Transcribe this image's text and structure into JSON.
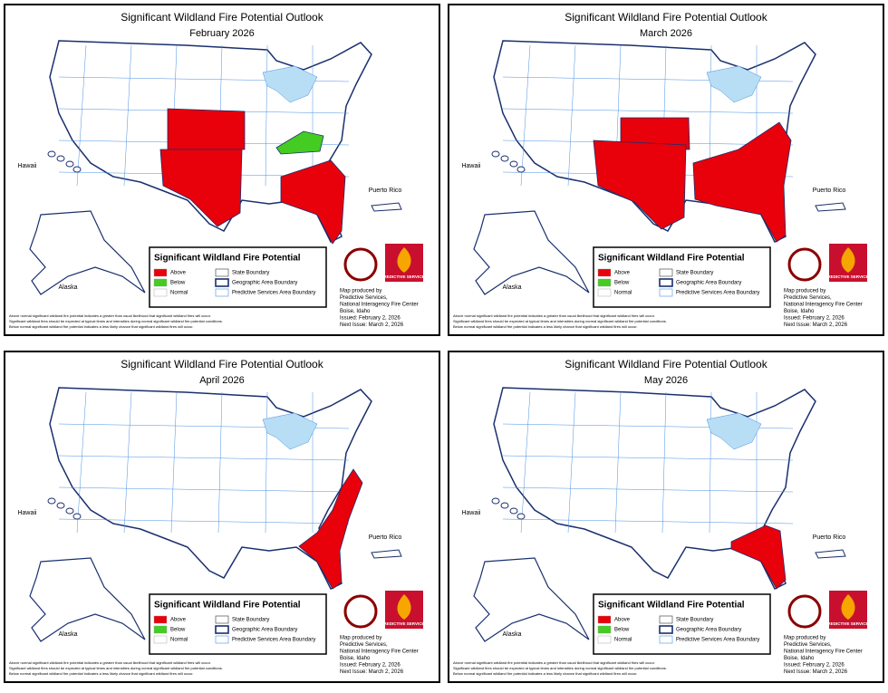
{
  "panels": [
    {
      "title": "Significant Wildland Fire Potential Outlook",
      "subtitle": "February 2026",
      "legend": {
        "title": "Significant Wildland Fire Potential",
        "items": [
          "Above",
          "Below",
          "Normal",
          "State Boundary",
          "Geographic Area Boundary",
          "Predictive Services Area Boundary"
        ]
      },
      "labels": [
        "Hawaii",
        "Alaska",
        "Puerto Rico"
      ],
      "logo": "PREDICTIVE SERVICES",
      "producer": [
        "Map produced by",
        "Predictive Services,",
        "National Interagency Fire Center",
        "Boise, Idaho",
        "Issued: February 2, 2026",
        "Next Issue: March 2, 2026"
      ],
      "notes": [
        "Above normal significant wildland fire potential indicates a greater than usual likelihood that significant wildland fires will occur.",
        "Significant wildland fires should be expected at typical times and intensities during normal significant wildland fire potential conditions.",
        "Below normal significant wildland fire potential indicates a less likely chance that significant wildland fires will occur."
      ]
    },
    {
      "title": "Significant Wildland Fire Potential Outlook",
      "subtitle": "March 2026",
      "legend": {
        "title": "Significant Wildland Fire Potential",
        "items": [
          "Above",
          "Below",
          "Normal",
          "State Boundary",
          "Geographic Area Boundary",
          "Predictive Services Area Boundary"
        ]
      },
      "labels": [
        "Hawaii",
        "Alaska",
        "Puerto Rico"
      ],
      "logo": "PREDICTIVE SERVICES",
      "producer": [
        "Map produced by",
        "Predictive Services,",
        "National Interagency Fire Center",
        "Boise, Idaho",
        "Issued: February 2, 2026",
        "Next Issue: March 2, 2026"
      ],
      "notes": [
        "Above normal significant wildland fire potential indicates a greater than usual likelihood that significant wildland fires will occur.",
        "Significant wildland fires should be expected at typical times and intensities during normal significant wildland fire potential conditions.",
        "Below normal significant wildland fire potential indicates a less likely chance that significant wildland fires will occur."
      ]
    },
    {
      "title": "Significant Wildland Fire Potential Outlook",
      "subtitle": "April 2026",
      "legend": {
        "title": "Significant Wildland Fire Potential",
        "items": [
          "Above",
          "Below",
          "Normal",
          "State Boundary",
          "Geographic Area Boundary",
          "Predictive Services Area Boundary"
        ]
      },
      "labels": [
        "Hawaii",
        "Alaska",
        "Puerto Rico"
      ],
      "logo": "PREDICTIVE SERVICES",
      "producer": [
        "Map produced by",
        "Predictive Services,",
        "National Interagency Fire Center",
        "Boise, Idaho",
        "Issued: February 2, 2026",
        "Next Issue: March 2, 2026"
      ],
      "notes": [
        "Above normal significant wildland fire potential indicates a greater than usual likelihood that significant wildland fires will occur.",
        "Significant wildland fires should be expected at typical times and intensities during normal significant wildland fire potential conditions.",
        "Below normal significant wildland fire potential indicates a less likely chance that significant wildland fires will occur."
      ]
    },
    {
      "title": "Significant Wildland Fire Potential Outlook",
      "subtitle": "May 2026",
      "legend": {
        "title": "Significant Wildland Fire Potential",
        "items": [
          "Above",
          "Below",
          "Normal",
          "State Boundary",
          "Geographic Area Boundary",
          "Predictive Services Area Boundary"
        ]
      },
      "labels": [
        "Hawaii",
        "Alaska",
        "Puerto Rico"
      ],
      "logo": "PREDICTIVE SERVICES",
      "producer": [
        "Map produced by",
        "Predictive Services,",
        "National Interagency Fire Center",
        "Boise, Idaho",
        "Issued: February 2, 2026",
        "Next Issue: March 2, 2026"
      ],
      "notes": [
        "Above normal significant wildland fire potential indicates a greater than usual likelihood that significant wildland fires will occur.",
        "Significant wildland fires should be expected at typical times and intensities during normal significant wildland fire potential conditions.",
        "Below normal significant wildland fire potential indicates a less likely chance that significant wildland fires will occur."
      ]
    }
  ]
}
